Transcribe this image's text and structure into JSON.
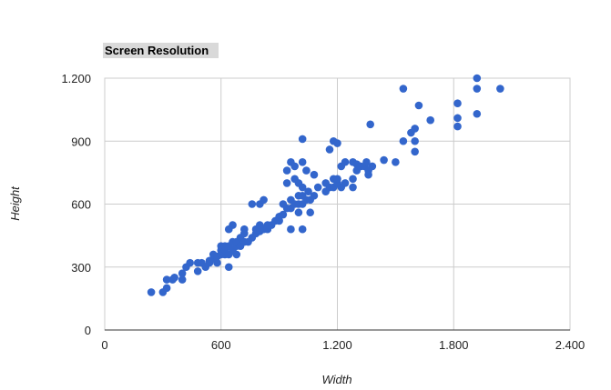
{
  "chart_data": {
    "type": "scatter",
    "title": "Screen Resolution",
    "xlabel": "Width",
    "ylabel": "Height",
    "xlim": [
      0,
      2400
    ],
    "ylim": [
      0,
      1200
    ],
    "x_ticks": [
      0,
      600,
      1200,
      1800,
      2400
    ],
    "y_ticks": [
      0,
      300,
      600,
      900,
      1200
    ],
    "x_tick_labels": [
      "0",
      "600",
      "1.200",
      "1.800",
      "2.400"
    ],
    "y_tick_labels": [
      "0",
      "300",
      "600",
      "900",
      "1.200"
    ],
    "grid": true,
    "legend": "none",
    "series": [
      {
        "color": "#3366cc",
        "points": [
          [
            240,
            180
          ],
          [
            300,
            180
          ],
          [
            320,
            200
          ],
          [
            320,
            240
          ],
          [
            350,
            240
          ],
          [
            360,
            250
          ],
          [
            400,
            240
          ],
          [
            400,
            270
          ],
          [
            420,
            300
          ],
          [
            440,
            320
          ],
          [
            480,
            320
          ],
          [
            480,
            280
          ],
          [
            500,
            320
          ],
          [
            520,
            300
          ],
          [
            540,
            320
          ],
          [
            540,
            330
          ],
          [
            560,
            340
          ],
          [
            560,
            360
          ],
          [
            580,
            320
          ],
          [
            580,
            350
          ],
          [
            600,
            360
          ],
          [
            600,
            380
          ],
          [
            600,
            400
          ],
          [
            620,
            360
          ],
          [
            620,
            380
          ],
          [
            620,
            400
          ],
          [
            640,
            360
          ],
          [
            640,
            400
          ],
          [
            640,
            300
          ],
          [
            640,
            480
          ],
          [
            660,
            380
          ],
          [
            660,
            420
          ],
          [
            660,
            500
          ],
          [
            680,
            360
          ],
          [
            680,
            400
          ],
          [
            680,
            420
          ],
          [
            700,
            400
          ],
          [
            700,
            440
          ],
          [
            720,
            420
          ],
          [
            720,
            460
          ],
          [
            720,
            480
          ],
          [
            740,
            420
          ],
          [
            760,
            440
          ],
          [
            760,
            600
          ],
          [
            780,
            460
          ],
          [
            780,
            480
          ],
          [
            800,
            470
          ],
          [
            800,
            500
          ],
          [
            800,
            600
          ],
          [
            820,
            480
          ],
          [
            820,
            620
          ],
          [
            840,
            480
          ],
          [
            840,
            500
          ],
          [
            860,
            500
          ],
          [
            880,
            520
          ],
          [
            900,
            520
          ],
          [
            900,
            540
          ],
          [
            920,
            550
          ],
          [
            920,
            600
          ],
          [
            940,
            580
          ],
          [
            940,
            700
          ],
          [
            940,
            760
          ],
          [
            960,
            480
          ],
          [
            960,
            580
          ],
          [
            960,
            620
          ],
          [
            960,
            800
          ],
          [
            980,
            600
          ],
          [
            980,
            720
          ],
          [
            980,
            780
          ],
          [
            1000,
            560
          ],
          [
            1000,
            600
          ],
          [
            1000,
            640
          ],
          [
            1000,
            700
          ],
          [
            1020,
            480
          ],
          [
            1020,
            600
          ],
          [
            1020,
            640
          ],
          [
            1020,
            680
          ],
          [
            1020,
            800
          ],
          [
            1020,
            910
          ],
          [
            1040,
            620
          ],
          [
            1040,
            760
          ],
          [
            1050,
            660
          ],
          [
            1060,
            560
          ],
          [
            1060,
            620
          ],
          [
            1080,
            640
          ],
          [
            1080,
            740
          ],
          [
            1100,
            680
          ],
          [
            1140,
            660
          ],
          [
            1140,
            700
          ],
          [
            1160,
            680
          ],
          [
            1160,
            860
          ],
          [
            1180,
            680
          ],
          [
            1180,
            720
          ],
          [
            1180,
            900
          ],
          [
            1200,
            700
          ],
          [
            1200,
            720
          ],
          [
            1200,
            890
          ],
          [
            1220,
            680
          ],
          [
            1220,
            780
          ],
          [
            1240,
            700
          ],
          [
            1240,
            800
          ],
          [
            1280,
            680
          ],
          [
            1280,
            720
          ],
          [
            1280,
            800
          ],
          [
            1300,
            760
          ],
          [
            1300,
            790
          ],
          [
            1320,
            780
          ],
          [
            1340,
            780
          ],
          [
            1350,
            800
          ],
          [
            1360,
            760
          ],
          [
            1360,
            740
          ],
          [
            1370,
            980
          ],
          [
            1380,
            780
          ],
          [
            1440,
            810
          ],
          [
            1500,
            800
          ],
          [
            1540,
            900
          ],
          [
            1540,
            1150
          ],
          [
            1580,
            940
          ],
          [
            1600,
            900
          ],
          [
            1600,
            960
          ],
          [
            1600,
            850
          ],
          [
            1620,
            1070
          ],
          [
            1680,
            1000
          ],
          [
            1820,
            970
          ],
          [
            1820,
            1010
          ],
          [
            1820,
            1080
          ],
          [
            1920,
            1200
          ],
          [
            1920,
            1150
          ],
          [
            1920,
            1030
          ],
          [
            2040,
            1150
          ]
        ]
      }
    ]
  }
}
